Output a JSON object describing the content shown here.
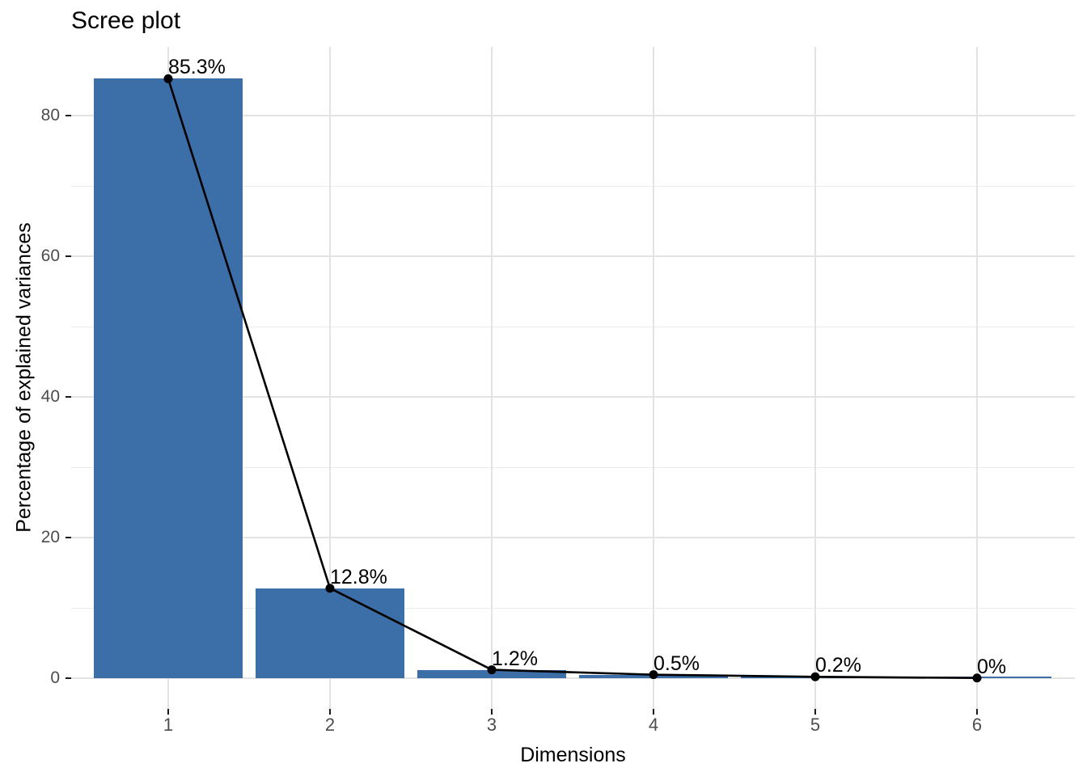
{
  "chart": {
    "title": "Scree plot",
    "xlabel": "Dimensions",
    "ylabel": "Percentage of explained variances"
  },
  "chart_data": {
    "type": "bar",
    "overlay": "line-with-points",
    "title": "Scree plot",
    "xlabel": "Dimensions",
    "ylabel": "Percentage of explained variances",
    "categories": [
      "1",
      "2",
      "3",
      "4",
      "5",
      "6"
    ],
    "values": [
      85.3,
      12.8,
      1.2,
      0.5,
      0.2,
      0.03
    ],
    "point_labels": [
      "85.3%",
      "12.8%",
      "1.2%",
      "0.5%",
      "0.2%",
      "0%"
    ],
    "ylim": [
      -4.5,
      89.8
    ],
    "yticks": [
      0,
      20,
      40,
      60,
      80
    ],
    "yticks_minor": [
      10,
      30,
      50,
      70
    ],
    "grid": "horizontal major+minor every 10; vertical major at each dimension",
    "legend": "none",
    "colors": {
      "bar_fill": "#3C6EA8",
      "line": "#000000",
      "point": "#000000",
      "grid_major": "#E3E3E3",
      "grid_minor": "#EBEBEB",
      "tick_mark": "#1A1A1A",
      "tick_text": "#4D4D4D",
      "title_text": "#000000",
      "background": "#FFFFFF"
    }
  }
}
